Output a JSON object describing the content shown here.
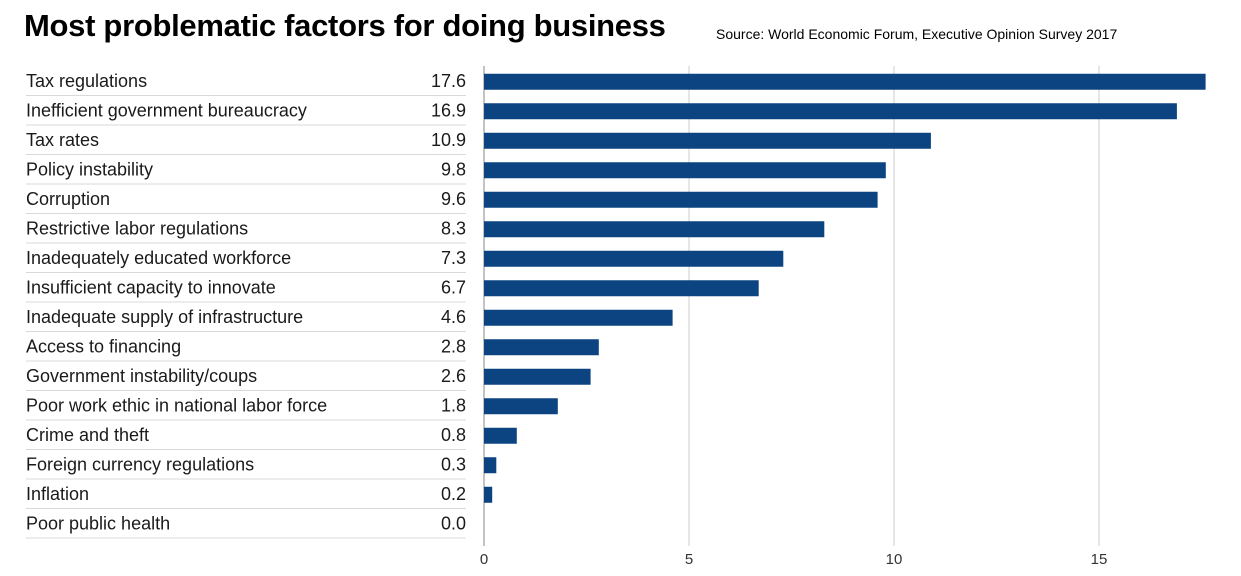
{
  "title": "Most problematic factors for doing business",
  "source": "Source: World Economic Forum, Executive Opinion Survey 2017",
  "colors": {
    "bar": "#0b4480",
    "grid": "#cccccc",
    "row_divider": "#d9d9d9",
    "axis": "#888888"
  },
  "chart_data": {
    "type": "bar",
    "orientation": "horizontal",
    "title": "Most problematic factors for doing business",
    "categories": [
      "Tax regulations",
      "Inefficient government bureaucracy",
      "Tax rates",
      "Policy instability",
      "Corruption",
      "Restrictive labor regulations",
      "Inadequately educated workforce",
      "Insufficient capacity to innovate",
      "Inadequate supply of infrastructure",
      "Access to financing",
      "Government instability/coups",
      "Poor work ethic in national labor force",
      "Crime and theft",
      "Foreign currency regulations",
      "Inflation",
      "Poor public health"
    ],
    "values": [
      17.6,
      16.9,
      10.9,
      9.8,
      9.6,
      8.3,
      7.3,
      6.7,
      4.6,
      2.8,
      2.6,
      1.8,
      0.8,
      0.3,
      0.2,
      0.0
    ],
    "value_labels": [
      "17.6",
      "16.9",
      "10.9",
      "9.8",
      "9.6",
      "8.3",
      "7.3",
      "6.7",
      "4.6",
      "2.8",
      "2.6",
      "1.8",
      "0.8",
      "0.3",
      "0.2",
      "0.0"
    ],
    "x_ticks": [
      0,
      5,
      10,
      15
    ],
    "x_tick_labels": [
      "0",
      "5",
      "10",
      "15"
    ],
    "xlim": [
      0,
      18
    ],
    "grid": true,
    "legend": "none"
  }
}
